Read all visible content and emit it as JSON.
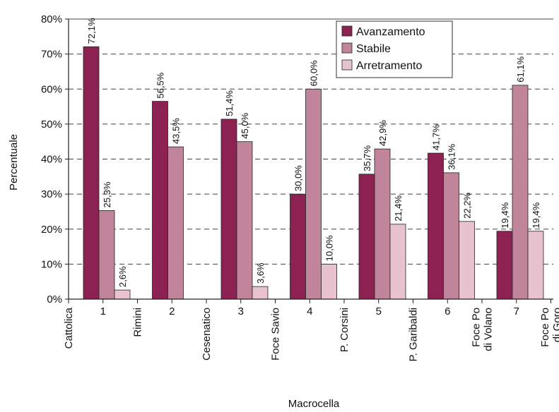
{
  "chart_data": {
    "type": "bar",
    "xlabel": "Macrocella",
    "ylabel": "Percentuale",
    "ylim": [
      0,
      80
    ],
    "yticks": [
      "0%",
      "10%",
      "20%",
      "30%",
      "40%",
      "50%",
      "60%",
      "70%",
      "80%"
    ],
    "grid": "horizontal dashed",
    "legend_position": "top-right",
    "categories": [
      "1",
      "2",
      "3",
      "4",
      "5",
      "6",
      "7"
    ],
    "boundaries": [
      "Cattolica",
      "Rimini",
      "Cesenatico",
      "Foce Savio",
      "P. Corsini",
      "P. Garibaldi",
      "Foce Po di Volano",
      "Foce Po di Goro"
    ],
    "boundary_lines": [
      [
        "Cattolica"
      ],
      [
        "Rimini"
      ],
      [
        "Cesenatico"
      ],
      [
        "Foce Savio"
      ],
      [
        "P. Corsini"
      ],
      [
        "P. Garibaldi"
      ],
      [
        "Foce Po",
        "di Volano"
      ],
      [
        "Foce Po",
        "di Goro"
      ]
    ],
    "series": [
      {
        "name": "Avanzamento",
        "color": "#8b2252",
        "values": [
          72.1,
          56.5,
          51.4,
          30.0,
          35.7,
          41.7,
          19.4
        ],
        "labels": [
          "72,1%",
          "56,5%",
          "51,4%",
          "30,0%",
          "35,7%",
          "41,7%",
          "19,4%"
        ]
      },
      {
        "name": "Stabile",
        "color": "#c0859a",
        "values": [
          25.3,
          43.5,
          45.0,
          60.0,
          42.9,
          36.1,
          61.1
        ],
        "labels": [
          "25,3%",
          "43,5%",
          "45,0%",
          "60,0%",
          "42,9%",
          "36,1%",
          "61,1%"
        ]
      },
      {
        "name": "Arretramento",
        "color": "#e8c3cf",
        "values": [
          2.6,
          null,
          3.6,
          10.0,
          21.4,
          22.2,
          19.4
        ],
        "labels": [
          "2,6%",
          "",
          "3,6%",
          "10,0%",
          "21,4%",
          "22,2%",
          "19,4%"
        ]
      }
    ]
  }
}
